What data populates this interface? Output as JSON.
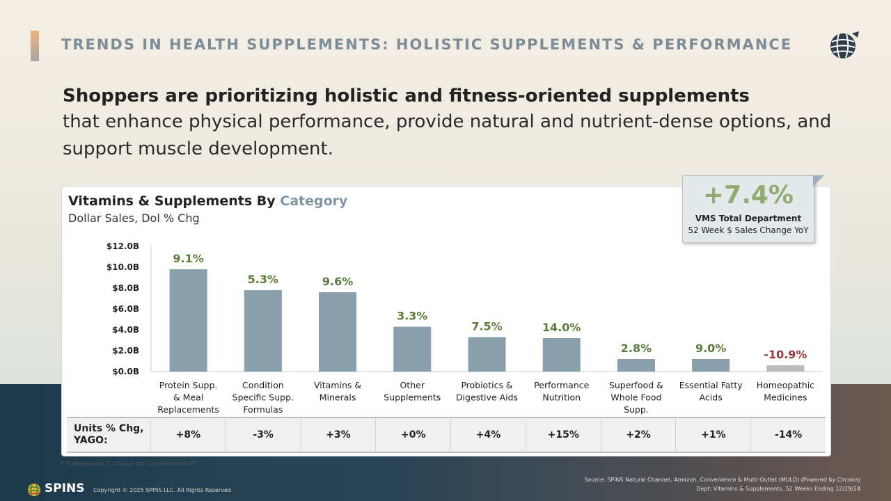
{
  "page": {
    "title": "TRENDS IN HEALTH SUPPLEMENTS: HOLISTIC SUPPLEMENTS & PERFORMANCE",
    "headline_bold": "Shoppers are prioritizing holistic and fitness-oriented supplements",
    "headline_rest": "that enhance physical performance, provide natural and nutrient-dense options, and support muscle development."
  },
  "callout": {
    "value": "+7.4%",
    "label": "VMS Total Department",
    "sublabel": "52 Week $ Sales Change YoY"
  },
  "chart_data": {
    "type": "bar",
    "title_main": "Vitamins & Supplements By ",
    "title_highlight": "Category",
    "subtitle": "Dollar Sales, Dol % Chg",
    "ylim": [
      0,
      12
    ],
    "yticks": [
      {
        "value": 0,
        "label": "$0.0B"
      },
      {
        "value": 2,
        "label": "$2.0B"
      },
      {
        "value": 4,
        "label": "$4.0B"
      },
      {
        "value": 6,
        "label": "$6.0B"
      },
      {
        "value": 8,
        "label": "$8.0B"
      },
      {
        "value": 10,
        "label": "$10.0B"
      },
      {
        "value": 12,
        "label": "$12.0B"
      }
    ],
    "categories": [
      "Protein Supp. & Meal Replacements",
      "Condition Specific Supp. Formulas",
      "Vitamins & Minerals",
      "Other Supplements",
      "Probiotics & Digestive Aids",
      "Performance Nutrition",
      "Superfood & Whole Food Supp.",
      "Essential Fatty Acids",
      "Homeopathic Medicines"
    ],
    "category_lines": [
      [
        "Protein Supp.",
        "& Meal",
        "Replacements"
      ],
      [
        "Condition",
        "Specific Supp.",
        "Formulas"
      ],
      [
        "Vitamins &",
        "Minerals"
      ],
      [
        "Other",
        "Supplements"
      ],
      [
        "Probiotics &",
        "Digestive Aids"
      ],
      [
        "Performance",
        "Nutrition"
      ],
      [
        "Superfood &",
        "Whole Food",
        "Supp."
      ],
      [
        "Essential Fatty",
        "Acids"
      ],
      [
        "Homeopathic",
        "Medicines"
      ]
    ],
    "values": [
      9.8,
      7.8,
      7.6,
      4.3,
      3.3,
      3.2,
      1.2,
      1.2,
      0.6
    ],
    "pct_labels": [
      "9.1%",
      "5.3%",
      "9.6%",
      "3.3%",
      "7.5%",
      "14.0%",
      "2.8%",
      "9.0%",
      "-10.9%"
    ],
    "colors": {
      "bar": "#8a9fac",
      "bar_negative": "#bcbcbc",
      "label_positive": "#5b7d3a",
      "label_negative": "#9c3a3a"
    }
  },
  "units": {
    "label": "Units % Chg, YAGO:",
    "values": [
      "+8%",
      "-3%",
      "+3%",
      "+0%",
      "+4%",
      "+15%",
      "+2%",
      "+1%",
      "-14%"
    ]
  },
  "footer": {
    "footnote": "* % Represents % Change YoY (vs same time LY)",
    "brand": "SPINS",
    "copyright": "Copyright © 2025 SPINS LLC. All Rights Reserved.",
    "source_line1": "Source: SPINS Natural Channel, Amazon, Convenience & Multi-Outlet (MULO) (Powered by Circana)",
    "source_line2": "Dept: Vitamins & Supplements, 52 Weeks Ending 12/29/24"
  }
}
